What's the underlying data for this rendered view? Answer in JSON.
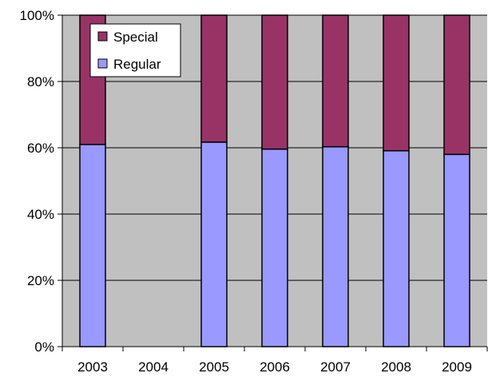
{
  "chart_data": {
    "type": "bar",
    "stacked": true,
    "percent_stacked": true,
    "categories": [
      "2003",
      "2004",
      "2005",
      "2006",
      "2007",
      "2008",
      "2009"
    ],
    "series": [
      {
        "name": "Regular",
        "color": "#9999ff",
        "values": [
          61,
          null,
          61.7,
          59.6,
          60.3,
          59.1,
          58
        ]
      },
      {
        "name": "Special",
        "color": "#993366",
        "values": [
          39,
          null,
          38.3,
          40.4,
          39.7,
          40.9,
          42
        ]
      }
    ],
    "ylim": [
      0,
      100
    ],
    "yticks": [
      0,
      20,
      40,
      60,
      80,
      100
    ],
    "ytick_labels": [
      "0%",
      "20%",
      "40%",
      "60%",
      "80%",
      "100%"
    ],
    "grid": true,
    "plot_background": "#c0c0c0",
    "legend": {
      "position": "top-left-inside",
      "entries": [
        "Special",
        "Regular"
      ]
    }
  }
}
